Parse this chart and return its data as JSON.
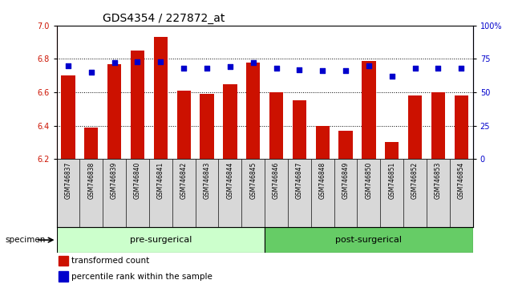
{
  "title": "GDS4354 / 227872_at",
  "samples": [
    "GSM746837",
    "GSM746838",
    "GSM746839",
    "GSM746840",
    "GSM746841",
    "GSM746842",
    "GSM746843",
    "GSM746844",
    "GSM746845",
    "GSM746846",
    "GSM746847",
    "GSM746848",
    "GSM746849",
    "GSM746850",
    "GSM746851",
    "GSM746852",
    "GSM746853",
    "GSM746854"
  ],
  "bar_values": [
    6.7,
    6.39,
    6.77,
    6.85,
    6.93,
    6.61,
    6.59,
    6.65,
    6.78,
    6.6,
    6.55,
    6.4,
    6.37,
    6.79,
    6.3,
    6.58,
    6.6,
    6.58
  ],
  "percentile_values": [
    70,
    65,
    72,
    73,
    73,
    68,
    68,
    69,
    72,
    68,
    67,
    66,
    66,
    70,
    62,
    68,
    68,
    68
  ],
  "bar_color": "#CC1100",
  "percentile_color": "#0000CC",
  "ymin": 6.2,
  "ymax": 7.0,
  "yticks": [
    6.2,
    6.4,
    6.6,
    6.8,
    7.0
  ],
  "y2min": 0,
  "y2max": 100,
  "y2ticks": [
    0,
    25,
    50,
    75,
    100
  ],
  "y2ticklabels": [
    "0",
    "25",
    "50",
    "75",
    "100%"
  ],
  "group1_label": "pre-surgerical",
  "group2_label": "post-surgerical",
  "group1_count": 9,
  "group2_count": 9,
  "group1_color": "#ccffcc",
  "group2_color": "#66cc66",
  "specimen_label": "specimen",
  "legend_bar_label": "transformed count",
  "legend_pct_label": "percentile rank within the sample",
  "bar_width": 0.6,
  "tick_label_fontsize": 7,
  "title_fontsize": 10,
  "group_fontsize": 8,
  "legend_fontsize": 7.5
}
